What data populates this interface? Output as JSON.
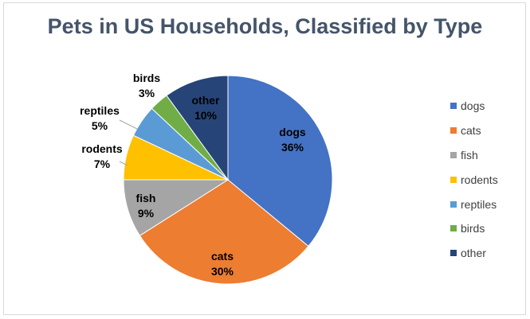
{
  "title": "Pets in US Households, Classified by Type",
  "chart_data": {
    "type": "pie",
    "title": "Pets in US Households, Classified by Type",
    "slices": [
      {
        "label": "dogs",
        "value": 36,
        "value_label": "36%",
        "color": "#4472c4"
      },
      {
        "label": "cats",
        "value": 30,
        "value_label": "30%",
        "color": "#ed7d31"
      },
      {
        "label": "fish",
        "value": 9,
        "value_label": "9%",
        "color": "#a5a5a5"
      },
      {
        "label": "rodents",
        "value": 7,
        "value_label": "7%",
        "color": "#ffc000"
      },
      {
        "label": "reptiles",
        "value": 5,
        "value_label": "5%",
        "color": "#5b9bd5"
      },
      {
        "label": "birds",
        "value": 3,
        "value_label": "3%",
        "color": "#70ad47"
      },
      {
        "label": "other",
        "value": 10,
        "value_label": "10%",
        "color": "#264478"
      }
    ],
    "legend_position": "right"
  }
}
